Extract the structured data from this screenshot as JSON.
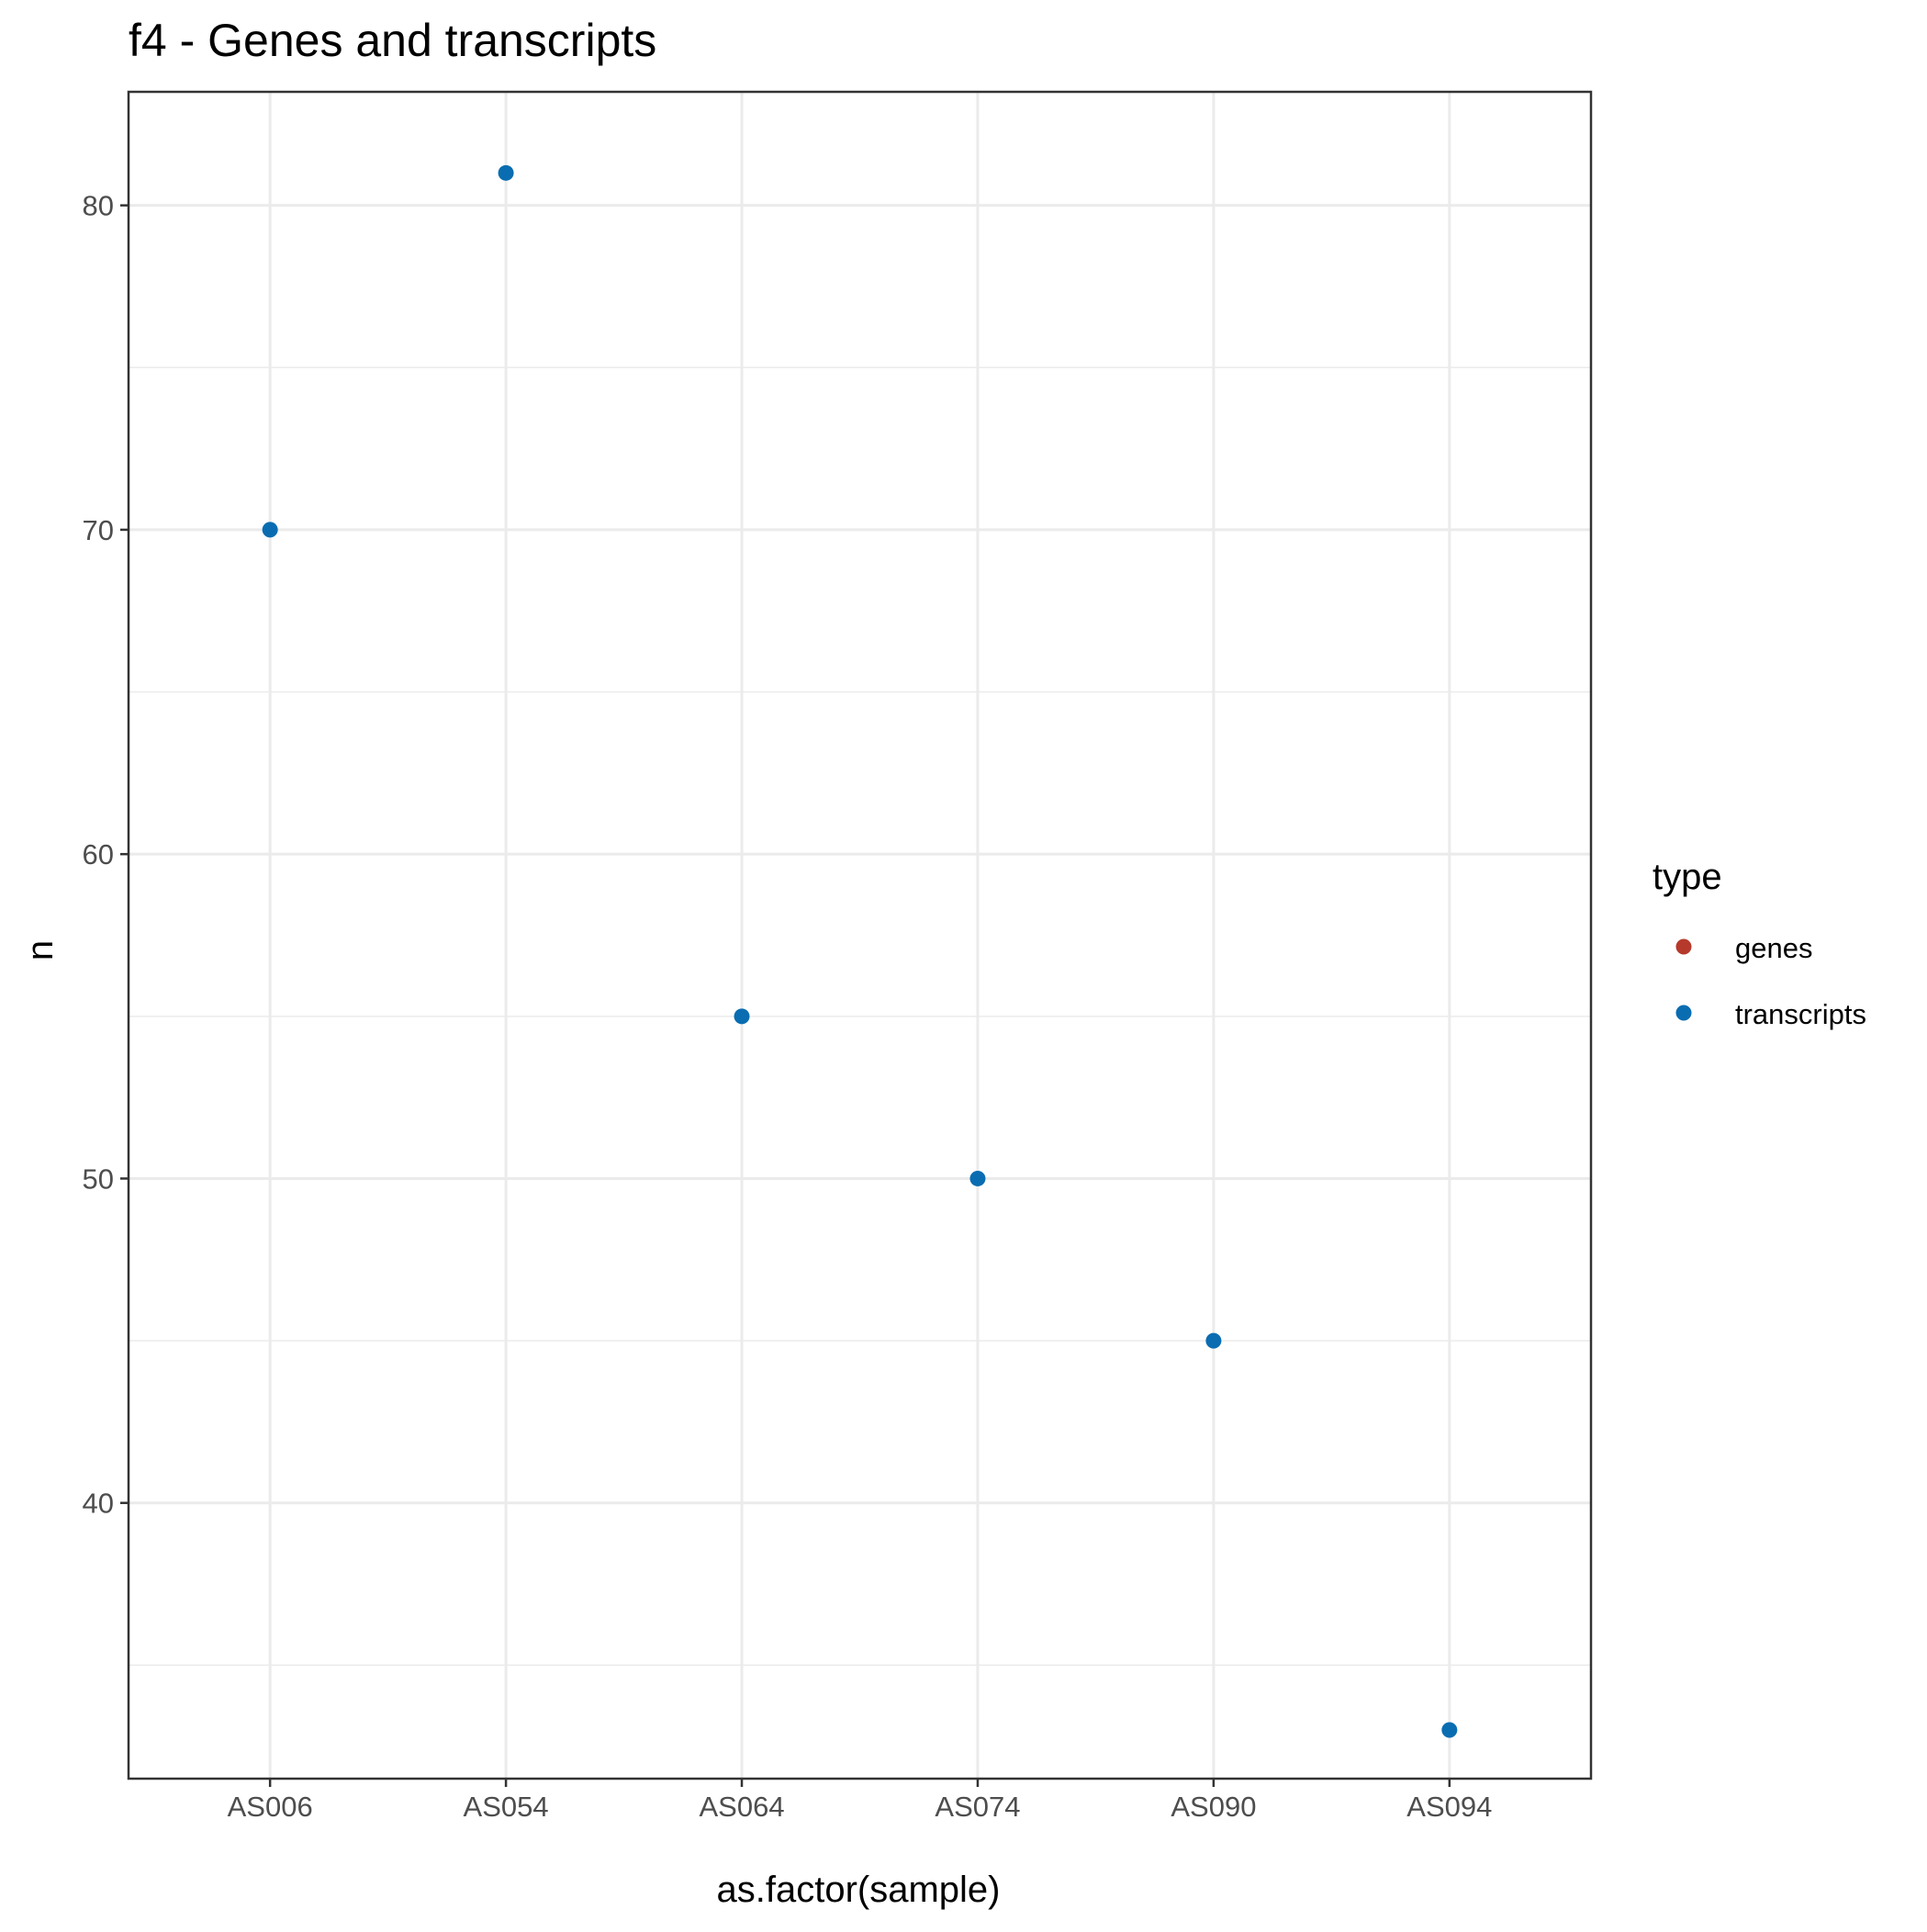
{
  "chart_data": {
    "type": "scatter",
    "title": "f4 - Genes and transcripts",
    "xlabel": "as.factor(sample)",
    "ylabel": "n",
    "categories": [
      "AS006",
      "AS054",
      "AS064",
      "AS074",
      "AS090",
      "AS094"
    ],
    "yticks": [
      40,
      50,
      60,
      70,
      80
    ],
    "ylim": [
      31.5,
      83.5
    ],
    "grid": true,
    "legend": {
      "title": "type",
      "position": "right",
      "entries": [
        {
          "label": "genes",
          "color": "#B63A2B"
        },
        {
          "label": "transcripts",
          "color": "#0A6DB1"
        }
      ]
    },
    "series": [
      {
        "name": "genes",
        "color": "#B63A2B",
        "values": []
      },
      {
        "name": "transcripts",
        "color": "#0A6DB1",
        "values": [
          70,
          81,
          55,
          50,
          45,
          33
        ]
      }
    ]
  }
}
